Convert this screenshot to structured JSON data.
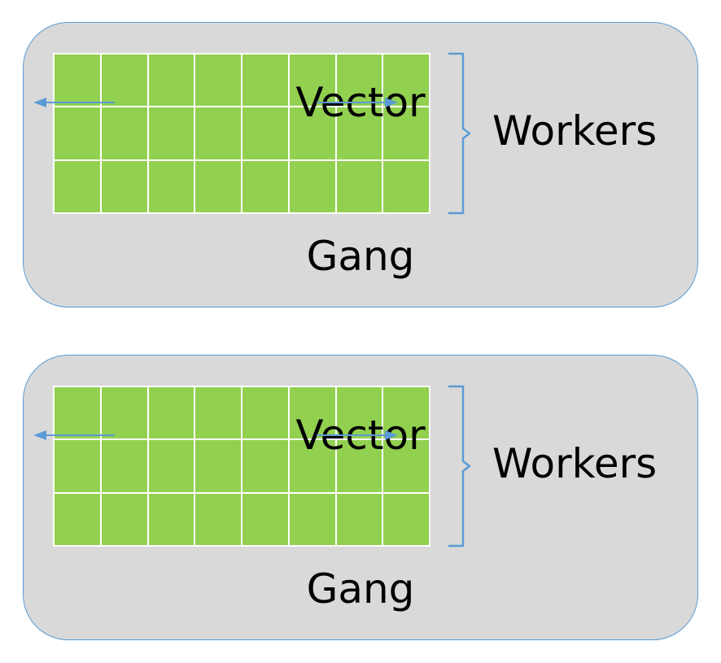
{
  "colors": {
    "gang_fill": "#d9d9d9",
    "gang_border": "#5b9bd5",
    "grid_fill": "#92d050",
    "grid_lines": "#ffffff",
    "arrow": "#5b9bd5",
    "bracket": "#5b9bd5",
    "text": "#000000"
  },
  "gangs": [
    {
      "gang_label": "Gang",
      "vector_label": "Vector",
      "workers_label": "Workers",
      "grid": {
        "rows": 3,
        "columns": 8
      }
    },
    {
      "gang_label": "Gang",
      "vector_label": "Vector",
      "workers_label": "Workers",
      "grid": {
        "rows": 3,
        "columns": 8
      }
    }
  ]
}
